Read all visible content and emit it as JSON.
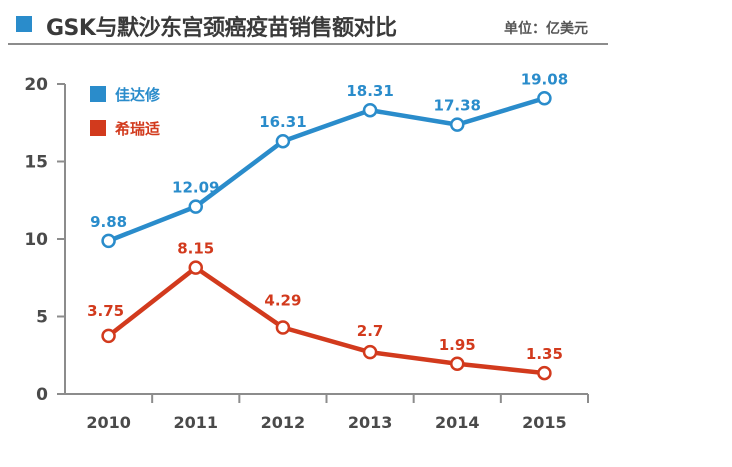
{
  "header": {
    "title": "GSK与默沙东宫颈癌疫苗销售额对比",
    "unit": "单位：亿美元"
  },
  "colors": {
    "series_1": "#2a8ccb",
    "series_2": "#d23a1d",
    "axis": "#8c8c8c",
    "text": "#4a4a4a"
  },
  "chart_data": {
    "type": "line",
    "title": "GSK与默沙东宫颈癌疫苗销售额对比",
    "unit_note": "单位：亿美元",
    "xlabel": "",
    "ylabel": "",
    "categories": [
      "2010",
      "2011",
      "2012",
      "2013",
      "2014",
      "2015"
    ],
    "ylim": [
      0,
      20
    ],
    "yticks": [
      0,
      5,
      10,
      15,
      20
    ],
    "grid": false,
    "legend_position": "top-left",
    "series": [
      {
        "name": "佳达修",
        "color": "#2a8ccb",
        "values": [
          9.88,
          12.09,
          16.31,
          18.31,
          17.38,
          19.08
        ],
        "labels": [
          "9.88",
          "12.09",
          "16.31",
          "18.31",
          "17.38",
          "19.08"
        ]
      },
      {
        "name": "希瑞适",
        "color": "#d23a1d",
        "values": [
          3.75,
          8.15,
          4.29,
          2.7,
          1.95,
          1.35
        ],
        "labels": [
          "3.75",
          "8.15",
          "4.29",
          "2.7",
          "1.95",
          "1.35"
        ]
      }
    ]
  }
}
